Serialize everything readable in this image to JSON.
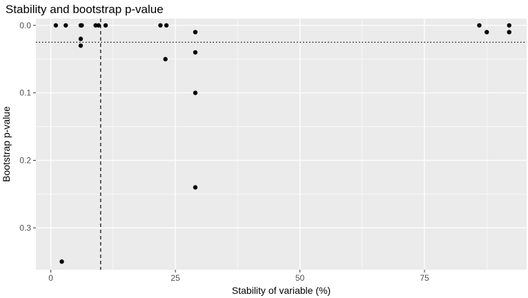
{
  "chart_data": {
    "type": "scatter",
    "title": "Stability and bootstrap p-value",
    "xlabel": "Stability of variable (%)",
    "ylabel": "Bootstrap p-value",
    "xlim": [
      -3,
      95.5
    ],
    "ylim": [
      -0.01,
      0.362
    ],
    "y_reversed": true,
    "x_ticks": [
      0,
      25,
      50,
      75
    ],
    "x_tick_labels": [
      "0",
      "25",
      "50",
      "75"
    ],
    "y_ticks": [
      0.0,
      0.1,
      0.2,
      0.3
    ],
    "y_tick_labels": [
      "0.0",
      "0.1",
      "0.2",
      "0.3"
    ],
    "grid": true,
    "background": "#ebebeb",
    "grid_color": "#ffffff",
    "point_color": "#000000",
    "reference_lines": [
      {
        "orientation": "vertical",
        "x": 10,
        "style": "dashed"
      },
      {
        "orientation": "horizontal",
        "y": 0.025,
        "style": "dotted"
      }
    ],
    "points": [
      {
        "x": 1,
        "y": 0.0
      },
      {
        "x": 3,
        "y": 0.0
      },
      {
        "x": 6,
        "y": 0.0
      },
      {
        "x": 6.2,
        "y": 0.0
      },
      {
        "x": 9,
        "y": 0.0
      },
      {
        "x": 9.6,
        "y": 0.0
      },
      {
        "x": 11,
        "y": 0.0
      },
      {
        "x": 22,
        "y": 0.0
      },
      {
        "x": 23.2,
        "y": 0.0
      },
      {
        "x": 6,
        "y": 0.02
      },
      {
        "x": 6,
        "y": 0.03
      },
      {
        "x": 2.2,
        "y": 0.35
      },
      {
        "x": 23,
        "y": 0.05
      },
      {
        "x": 29,
        "y": 0.01
      },
      {
        "x": 29,
        "y": 0.04
      },
      {
        "x": 29,
        "y": 0.1
      },
      {
        "x": 29,
        "y": 0.24
      },
      {
        "x": 86,
        "y": 0.0
      },
      {
        "x": 87.5,
        "y": 0.01
      },
      {
        "x": 92,
        "y": 0.0
      },
      {
        "x": 92,
        "y": 0.01
      }
    ]
  }
}
